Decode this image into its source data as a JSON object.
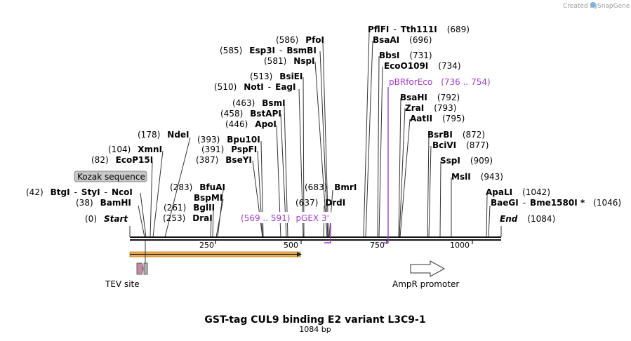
{
  "header": {
    "credit": "Created by",
    "brand": "SnapGene"
  },
  "map": {
    "title": "GST-tag CUL9 binding E2 variant L3C9-1",
    "length_label": "1084 bp",
    "start_label": "Start",
    "start_pos": "(0)",
    "end_label": "End",
    "end_pos": "(1084)",
    "ticks": [
      "250",
      "500",
      "750",
      "1000"
    ]
  },
  "sites": [
    {
      "pos": "(42)",
      "name": "BtgI",
      "sep1": "-",
      "name2": "StyI",
      "sep2": "-",
      "name3": "NcoI"
    },
    {
      "pos": "(38)",
      "name": "BamHI"
    },
    {
      "pos": "(82)",
      "name": "EcoP15I"
    },
    {
      "pos": "(104)",
      "name": "XmnI"
    },
    {
      "pos": "(178)",
      "name": "NdeI"
    },
    {
      "pos": "(283)",
      "name": "BfuAI"
    },
    {
      "name": "BspMI"
    },
    {
      "pos": "(261)",
      "name": "BglII"
    },
    {
      "pos": "(253)",
      "name": "DraI"
    },
    {
      "pos": "(393)",
      "name": "Bpu10I"
    },
    {
      "pos": "(391)",
      "name": "PspFI"
    },
    {
      "pos": "(387)",
      "name": "BseYI"
    },
    {
      "pos": "(463)",
      "name": "BsmI"
    },
    {
      "pos": "(458)",
      "name": "BstAPI"
    },
    {
      "pos": "(446)",
      "name": "ApoI"
    },
    {
      "pos": "(513)",
      "name": "BsiEI"
    },
    {
      "pos": "(510)",
      "name": "NotI",
      "sep1": "-",
      "name2": "EagI"
    },
    {
      "pos": "(586)",
      "name": "PfoI"
    },
    {
      "pos": "(585)",
      "name": "Esp3I",
      "sep1": "-",
      "name2": "BsmBI"
    },
    {
      "pos": "(581)",
      "name": "NspI"
    },
    {
      "pos": "(683)",
      "name": "BmrI"
    },
    {
      "pos": "(637)",
      "name": "DrdI"
    },
    {
      "name": "PflFI",
      "sep1": "-",
      "name2": "Tth111I",
      "pos": "(689)"
    },
    {
      "name": "BsaAI",
      "pos": "(696)"
    },
    {
      "name": "BbsI",
      "pos": "(731)"
    },
    {
      "name": "EcoO109I",
      "pos": "(734)"
    },
    {
      "name": "BsaHI",
      "pos": "(792)"
    },
    {
      "name": "ZraI",
      "pos": "(793)"
    },
    {
      "name": "AatII",
      "pos": "(795)"
    },
    {
      "name": "BsrBI",
      "pos": "(872)"
    },
    {
      "name": "BciVI",
      "pos": "(877)"
    },
    {
      "name": "SspI",
      "pos": "(909)"
    },
    {
      "name": "MslI",
      "pos": "(943)"
    },
    {
      "name": "ApaLI",
      "pos": "(1042)"
    },
    {
      "name": "BaeGI",
      "sep1": "-",
      "name2": "Bme1580I *",
      "pos": "(1046)"
    }
  ],
  "primers": {
    "pBRforEco": {
      "name": "pBRforEco",
      "range": "(736 .. 754)"
    },
    "pGEX3": {
      "range": "(569 .. 591)",
      "name": "pGEX 3'"
    }
  },
  "features": {
    "kozak": "Kozak sequence",
    "tev": "TEV site",
    "ampr": "AmpR promoter"
  },
  "colors": {
    "primer": "#a23bd1",
    "orf": "#f2b35b",
    "tev": "#c58aa8",
    "kozak_fill": "#c8c8c8"
  }
}
